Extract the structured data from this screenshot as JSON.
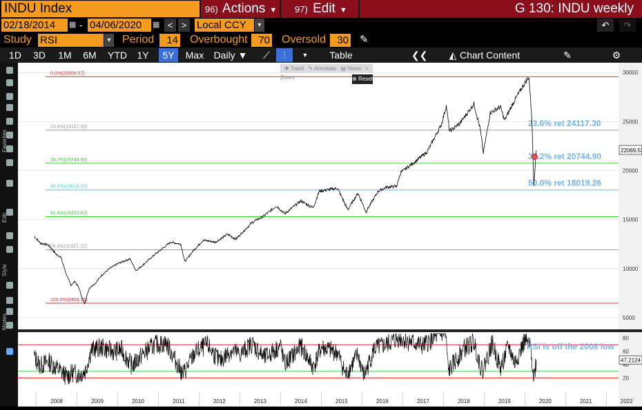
{
  "header": {
    "ticker": "INDU Index",
    "actions_num": "96)",
    "actions_label": "Actions",
    "edit_num": "97)",
    "edit_label": "Edit",
    "chart_title": "G 130: INDU weekly"
  },
  "controls": {
    "date_start": "02/18/2014",
    "date_sep": "-",
    "date_end": "04/06/2020",
    "currency": "Local CCY",
    "study_label": "Study",
    "study_value": "RSI",
    "period_label": "Period",
    "period_value": "14",
    "overbought_label": "Overbought",
    "overbought_value": "70",
    "oversold_label": "Oversold",
    "oversold_value": "30"
  },
  "ranges": [
    "1D",
    "3D",
    "1M",
    "6M",
    "YTD",
    "1Y",
    "5Y",
    "Max"
  ],
  "active_range": "5Y",
  "frequency": "Daily",
  "table_label": "Table",
  "chart_content_label": "Chart Content",
  "mini_toolbar": {
    "track": "Track",
    "annotate": "Annotate",
    "news": "News",
    "zoom": "Zoom",
    "reset": "Reset"
  },
  "side_labels": {
    "favorites": "Favorites",
    "edit": "Edit",
    "style": "Style",
    "modes": "Modes"
  },
  "colors": {
    "orange": "#f39a1f",
    "red_button": "#8b0e1c",
    "active": "#3a6fd8"
  },
  "chart_data": {
    "type": "line",
    "price_axis": {
      "ticks": [
        5000,
        10000,
        15000,
        20000,
        25000,
        30000
      ],
      "range": [
        3800,
        31000
      ]
    },
    "years": [
      "2008",
      "2009",
      "2010",
      "2011",
      "2012",
      "2013",
      "2014",
      "2015",
      "2016",
      "2017",
      "2018",
      "2019",
      "2020",
      "2021",
      "2022"
    ],
    "last_price": "22069.53",
    "fib_levels": [
      {
        "label": "0.0%(29568.57)",
        "value": 29568.57,
        "color": "#e03030"
      },
      {
        "label": "23.6%(24117.30)",
        "value": 24117.3,
        "color": "#9a9a9a"
      },
      {
        "label": "38.2%(20744.90)",
        "value": 20744.9,
        "color": "#2fd02f"
      },
      {
        "label": "50.0%(18019.26)",
        "value": 18019.26,
        "color": "#2fd8e8"
      },
      {
        "label": "61.8%(15293.62)",
        "value": 15293.62,
        "color": "#2fd02f"
      },
      {
        "label": "76.4%(11921.22)",
        "value": 11921.22,
        "color": "#9a9a9a"
      },
      {
        "label": "100.0%(6469.95)",
        "value": 6469.95,
        "color": "#e03030"
      }
    ],
    "annotations": [
      {
        "text": "23.6% ret 24117.30",
        "value": 24117.3
      },
      {
        "text": "38.2% ret 20744.90",
        "value": 20744.9
      },
      {
        "text": "50.0% ret 18019.26",
        "value": 18019.26
      }
    ],
    "series": [
      {
        "values": [
          [
            2007.95,
            13300
          ],
          [
            2008.1,
            12600
          ],
          [
            2008.3,
            12400
          ],
          [
            2008.5,
            11400
          ],
          [
            2008.6,
            11200
          ],
          [
            2008.75,
            9300
          ],
          [
            2008.85,
            8300
          ],
          [
            2008.95,
            8700
          ],
          [
            2009.05,
            8000
          ],
          [
            2009.15,
            6700
          ],
          [
            2009.19,
            6470
          ],
          [
            2009.3,
            8000
          ],
          [
            2009.45,
            8500
          ],
          [
            2009.6,
            9300
          ],
          [
            2009.8,
            10000
          ],
          [
            2010.0,
            10500
          ],
          [
            2010.3,
            11000
          ],
          [
            2010.45,
            9800
          ],
          [
            2010.6,
            10300
          ],
          [
            2010.9,
            11400
          ],
          [
            2011.3,
            12700
          ],
          [
            2011.55,
            12500
          ],
          [
            2011.65,
            10700
          ],
          [
            2011.85,
            11800
          ],
          [
            2012.1,
            12900
          ],
          [
            2012.4,
            12700
          ],
          [
            2012.7,
            13500
          ],
          [
            2012.9,
            13000
          ],
          [
            2013.3,
            14700
          ],
          [
            2013.6,
            15400
          ],
          [
            2013.9,
            16400
          ],
          [
            2014.1,
            15600
          ],
          [
            2014.5,
            16900
          ],
          [
            2014.8,
            16200
          ],
          [
            2014.95,
            17900
          ],
          [
            2015.4,
            18200
          ],
          [
            2015.65,
            16000
          ],
          [
            2015.9,
            17700
          ],
          [
            2016.1,
            15800
          ],
          [
            2016.4,
            17900
          ],
          [
            2016.6,
            18300
          ],
          [
            2016.85,
            18400
          ],
          [
            2016.95,
            19800
          ],
          [
            2017.3,
            20900
          ],
          [
            2017.6,
            21900
          ],
          [
            2017.95,
            24700
          ],
          [
            2018.07,
            26600
          ],
          [
            2018.15,
            24000
          ],
          [
            2018.4,
            24800
          ],
          [
            2018.75,
            26800
          ],
          [
            2018.9,
            24300
          ],
          [
            2018.98,
            21800
          ],
          [
            2019.15,
            25900
          ],
          [
            2019.4,
            26500
          ],
          [
            2019.5,
            25100
          ],
          [
            2019.7,
            26800
          ],
          [
            2019.95,
            28600
          ],
          [
            2020.1,
            29568
          ],
          [
            2020.17,
            25400
          ],
          [
            2020.22,
            18600
          ],
          [
            2020.28,
            22070
          ]
        ]
      }
    ],
    "rsi": {
      "axis_ticks": [
        20,
        40,
        60,
        80
      ],
      "range": [
        8,
        88
      ],
      "overbought": 70,
      "oversold": 30,
      "lower_line": 20,
      "last_value": "47.2124",
      "annotation": "RSI is off the 2008 low",
      "values": [
        [
          2007.95,
          52
        ],
        [
          2008.1,
          38
        ],
        [
          2008.3,
          45
        ],
        [
          2008.5,
          35
        ],
        [
          2008.75,
          22
        ],
        [
          2008.9,
          28
        ],
        [
          2009.05,
          25
        ],
        [
          2009.2,
          30
        ],
        [
          2009.35,
          62
        ],
        [
          2009.6,
          66
        ],
        [
          2009.9,
          60
        ],
        [
          2010.1,
          62
        ],
        [
          2010.35,
          38
        ],
        [
          2010.6,
          55
        ],
        [
          2010.9,
          70
        ],
        [
          2011.2,
          72
        ],
        [
          2011.6,
          25
        ],
        [
          2011.9,
          58
        ],
        [
          2012.2,
          70
        ],
        [
          2012.5,
          45
        ],
        [
          2012.8,
          62
        ],
        [
          2013.0,
          55
        ],
        [
          2013.3,
          72
        ],
        [
          2013.6,
          50
        ],
        [
          2014.0,
          68
        ],
        [
          2014.1,
          40
        ],
        [
          2014.5,
          68
        ],
        [
          2014.8,
          36
        ],
        [
          2015.0,
          66
        ],
        [
          2015.4,
          58
        ],
        [
          2015.6,
          24
        ],
        [
          2015.9,
          55
        ],
        [
          2016.05,
          22
        ],
        [
          2016.3,
          64
        ],
        [
          2016.6,
          70
        ],
        [
          2016.9,
          80
        ],
        [
          2017.2,
          74
        ],
        [
          2017.5,
          68
        ],
        [
          2017.9,
          86
        ],
        [
          2018.05,
          88
        ],
        [
          2018.12,
          30
        ],
        [
          2018.5,
          64
        ],
        [
          2018.75,
          74
        ],
        [
          2018.95,
          30
        ],
        [
          2019.2,
          72
        ],
        [
          2019.4,
          34
        ],
        [
          2019.6,
          68
        ],
        [
          2019.75,
          42
        ],
        [
          2020.0,
          76
        ],
        [
          2020.15,
          64
        ],
        [
          2020.22,
          19
        ],
        [
          2020.28,
          47
        ]
      ]
    }
  }
}
